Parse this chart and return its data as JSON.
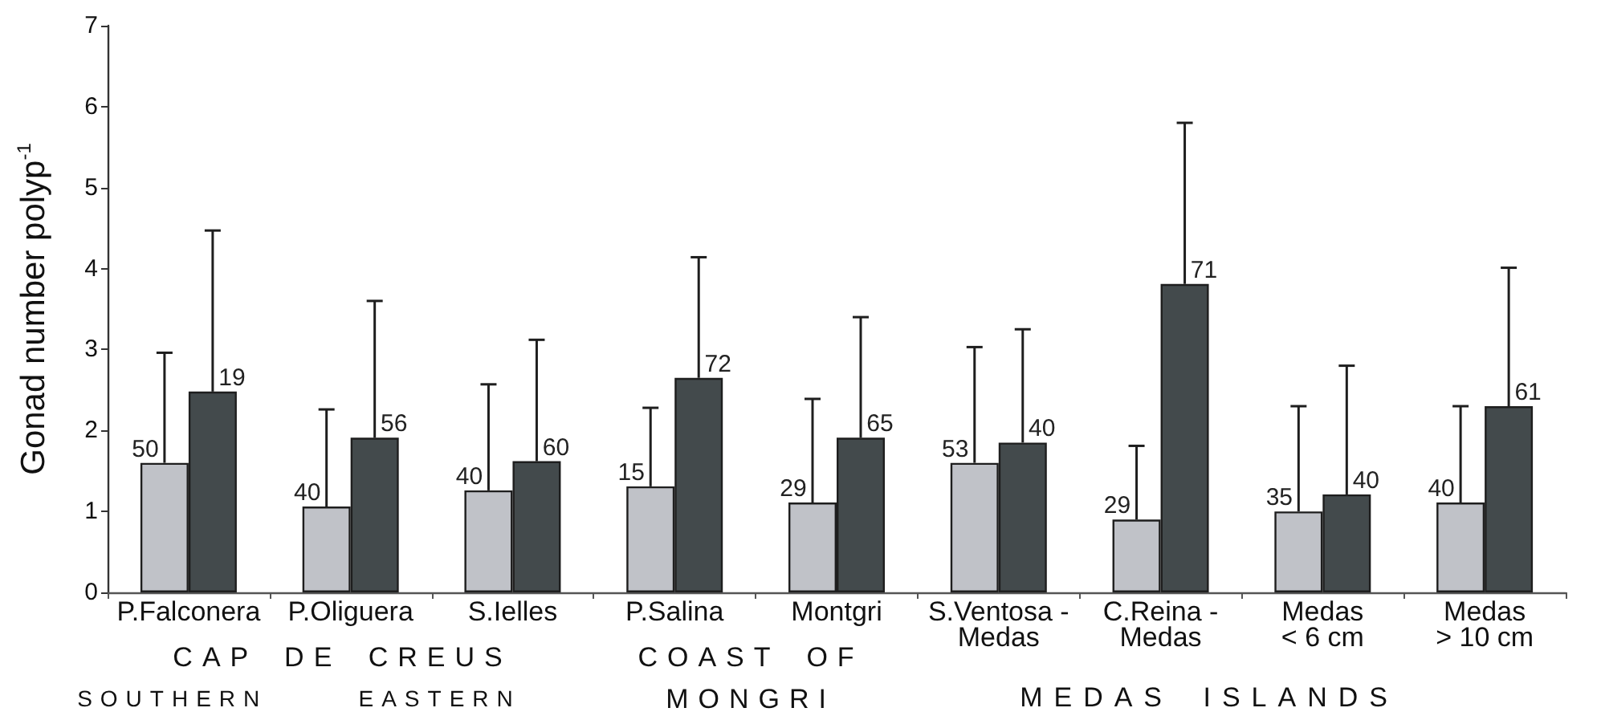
{
  "chart_data": {
    "type": "bar",
    "ylabel": "Gonad number polyp$^{-1}$",
    "categories": [
      "P.Falconera",
      "P.Oliguera",
      "S.Ielles",
      "P.Salina",
      "Montgri",
      "S.Ventosa -\nMedas",
      "C.Reina -\nMedas",
      "Medas\n< 6 cm",
      "Medas\n> 10 cm"
    ],
    "series": [
      {
        "color": "#c0c2c8",
        "values": [
          1.6,
          1.06,
          1.26,
          1.31,
          1.11,
          1.6,
          0.9,
          1.0,
          1.11
        ],
        "errors": [
          [
            1.6,
            2.96
          ],
          [
            1.06,
            2.26
          ],
          [
            1.26,
            2.57
          ],
          [
            1.31,
            2.28
          ],
          [
            1.11,
            2.39
          ],
          [
            1.6,
            3.03
          ],
          [
            0.9,
            1.81
          ],
          [
            1.0,
            2.3
          ],
          [
            1.11,
            2.3
          ]
        ]
      },
      {
        "color": "#434a4c",
        "values": [
          2.48,
          1.91,
          1.62,
          2.65,
          1.91,
          1.85,
          3.81,
          1.21,
          2.3
        ],
        "errors": [
          [
            2.48,
            4.47
          ],
          [
            1.91,
            3.6
          ],
          [
            1.62,
            3.12
          ],
          [
            2.65,
            4.14
          ],
          [
            1.91,
            3.4
          ],
          [
            1.85,
            3.25
          ],
          [
            3.81,
            5.8
          ],
          [
            1.21,
            2.8
          ],
          [
            2.3,
            4.01
          ]
        ]
      }
    ],
    "ylim": [
      0,
      7
    ],
    "yticks": [
      0,
      1,
      2,
      3,
      4,
      5,
      6,
      7
    ],
    "annotations": [
      "CAP DE CREUS",
      "SOUTHERN",
      "EASTERN",
      "COAST OF\nMONGRI",
      "MEDAS ISLANDS",
      {
        "text": "50",
        "x": "P.Falconera",
        "y": 1.6
      },
      {
        "text": "19",
        "x": "P.Falconera",
        "y": 2.48
      },
      {
        "text": "40",
        "x": "P.Oliguera",
        "y": 1.06
      },
      {
        "text": "56",
        "x": "P.Oliguera",
        "y": 1.91
      },
      {
        "text": "40",
        "x": "S.Ielles",
        "y": 1.26
      },
      {
        "text": "60",
        "x": "S.Ielles",
        "y": 1.62
      },
      {
        "text": "15",
        "x": "P.Salina",
        "y": 1.31
      },
      {
        "text": "72",
        "x": "P.Salina",
        "y": 2.65
      },
      {
        "text": "29",
        "x": "Montgri",
        "y": 1.11
      },
      {
        "text": "65",
        "x": "Montgri",
        "y": 1.91
      },
      {
        "text": "53",
        "x": "S.Ventosa -\nMedas",
        "y": 1.6
      },
      {
        "text": "40",
        "x": "S.Ventosa -\nMedas",
        "y": 1.85
      },
      {
        "text": "29",
        "x": "C.Reina -\nMedas",
        "y": 0.9
      },
      {
        "text": "71",
        "x": "C.Reina -\nMedas",
        "y": 3.81
      },
      {
        "text": "35",
        "x": "Medas\n< 6 cm",
        "y": 1.0
      },
      {
        "text": "40",
        "x": "Medas\n< 6 cm",
        "y": 1.21
      },
      {
        "text": "40",
        "x": "Medas\n> 10 cm",
        "y": 1.11
      },
      {
        "text": "61",
        "x": "Medas\n> 10 cm",
        "y": 2.3
      }
    ]
  }
}
